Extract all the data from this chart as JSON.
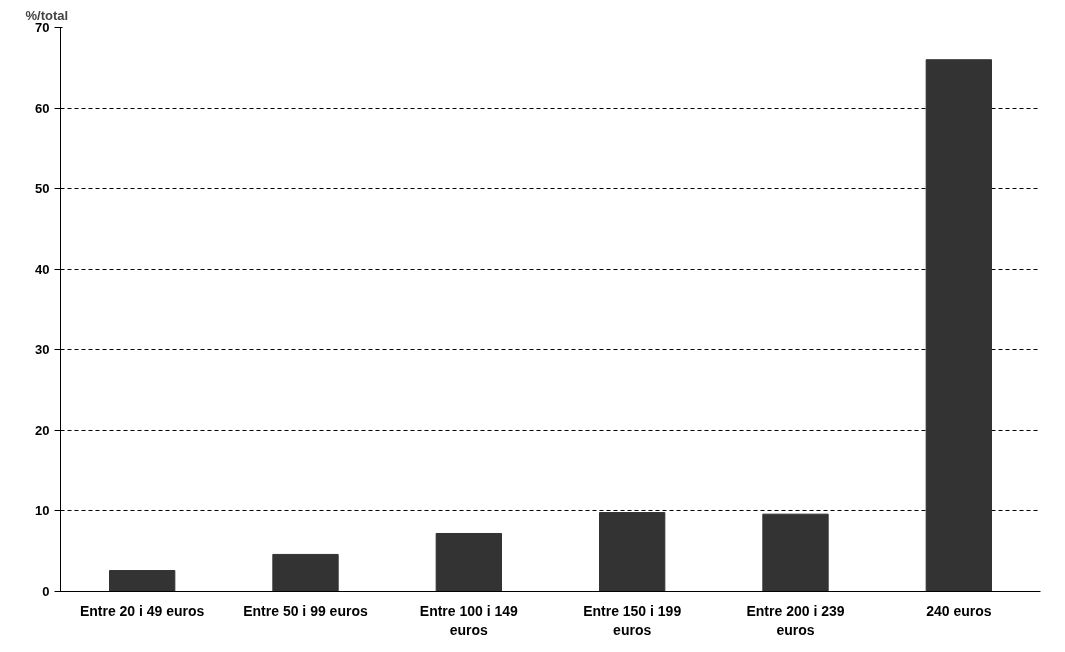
{
  "chart_data": {
    "type": "bar",
    "ylabel": "%/total",
    "categories": [
      "Entre 20 i 49 euros",
      "Entre 50 i 99 euros",
      "Entre 100 i 149 euros",
      "Entre 150 i 199 euros",
      "Entre 200 i 239 euros",
      "240 euros"
    ],
    "values": [
      2.6,
      4.6,
      7.2,
      9.8,
      9.6,
      66.0
    ],
    "color": "#333333",
    "ylim": [
      0,
      70
    ],
    "yticks": [
      0,
      10,
      20,
      30,
      40,
      50,
      60,
      70
    ],
    "grid": "y"
  }
}
